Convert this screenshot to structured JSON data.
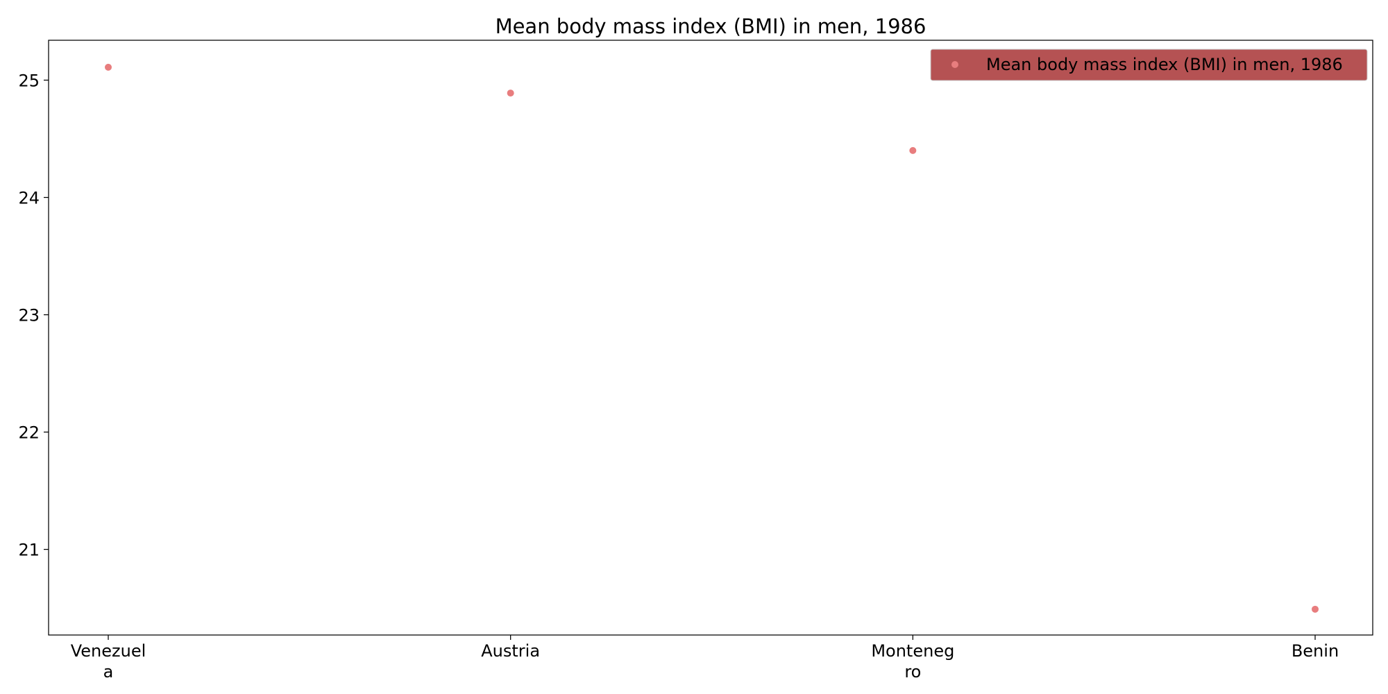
{
  "chart_data": {
    "type": "scatter",
    "title": "Mean body mass index (BMI) in men, 1986",
    "categories": [
      "Venezuela",
      "Austria",
      "Montenegro",
      "Benin"
    ],
    "category_tick_labels": [
      [
        "Venezuel",
        "a"
      ],
      [
        "Austria"
      ],
      [
        "Monteneg",
        "ro"
      ],
      [
        "Benin"
      ]
    ],
    "series": [
      {
        "name": "Mean body mass index (BMI) in men, 1986",
        "values": [
          25.11,
          24.89,
          24.4,
          20.49
        ]
      }
    ],
    "ylim": [
      20.27,
      25.34
    ],
    "y_ticks": [
      21,
      22,
      23,
      24,
      25
    ],
    "xlabel": "",
    "ylabel": "",
    "grid": false,
    "legend": {
      "placement": "top-right",
      "background_color": "#b55253"
    },
    "colors": {
      "marker": "#e87d7e",
      "axis": "#000000",
      "background": "#ffffff"
    }
  }
}
